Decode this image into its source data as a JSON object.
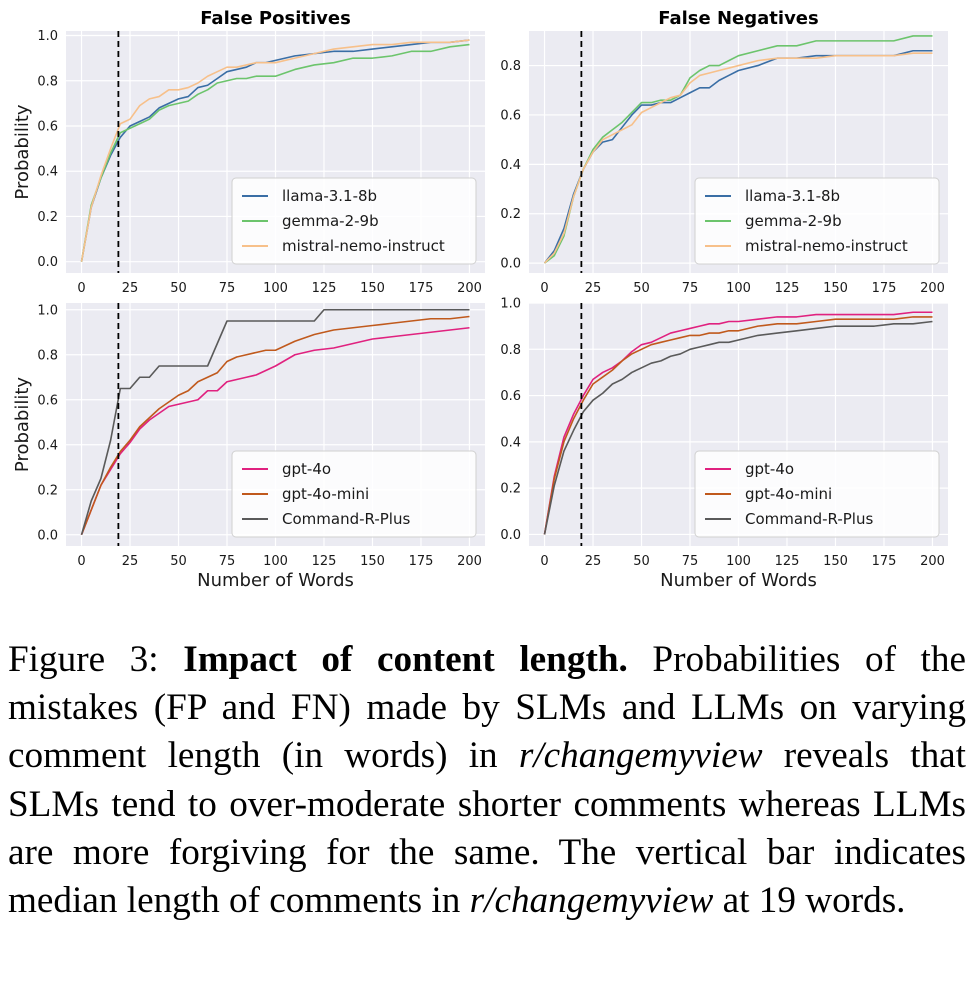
{
  "chart_data": [
    {
      "type": "line",
      "title": "False Positives",
      "xlabel": "",
      "ylabel": "Probability",
      "xlim": [
        -8,
        208
      ],
      "ylim": [
        -0.05,
        1.02
      ],
      "xticks": [
        0,
        25,
        50,
        75,
        100,
        125,
        150,
        175,
        200
      ],
      "yticks": [
        0.0,
        0.2,
        0.4,
        0.6,
        0.8,
        1.0
      ],
      "grid": true,
      "legend": "lower-right",
      "vline": 19,
      "series": [
        {
          "name": "llama-3.1-8b",
          "color": "#3a6ea5",
          "x": [
            0,
            5,
            10,
            15,
            20,
            25,
            30,
            35,
            40,
            45,
            50,
            55,
            60,
            65,
            70,
            75,
            80,
            85,
            90,
            95,
            100,
            110,
            120,
            130,
            140,
            150,
            160,
            170,
            180,
            190,
            200
          ],
          "y": [
            0,
            0.24,
            0.37,
            0.47,
            0.55,
            0.6,
            0.62,
            0.64,
            0.68,
            0.7,
            0.72,
            0.73,
            0.77,
            0.78,
            0.81,
            0.84,
            0.85,
            0.86,
            0.88,
            0.88,
            0.89,
            0.91,
            0.92,
            0.93,
            0.93,
            0.94,
            0.95,
            0.96,
            0.97,
            0.97,
            0.98
          ]
        },
        {
          "name": "gemma-2-9b",
          "color": "#6cc46c",
          "x": [
            0,
            5,
            10,
            15,
            20,
            25,
            30,
            35,
            40,
            45,
            50,
            55,
            60,
            65,
            70,
            75,
            80,
            85,
            90,
            95,
            100,
            110,
            120,
            130,
            140,
            150,
            160,
            170,
            180,
            190,
            200
          ],
          "y": [
            0,
            0.25,
            0.37,
            0.48,
            0.57,
            0.59,
            0.61,
            0.63,
            0.67,
            0.69,
            0.7,
            0.71,
            0.74,
            0.76,
            0.79,
            0.8,
            0.81,
            0.81,
            0.82,
            0.82,
            0.82,
            0.85,
            0.87,
            0.88,
            0.9,
            0.9,
            0.91,
            0.93,
            0.93,
            0.95,
            0.96
          ]
        },
        {
          "name": "mistral-nemo-instruct",
          "color": "#f7c08a",
          "x": [
            0,
            5,
            10,
            15,
            20,
            25,
            30,
            35,
            40,
            45,
            50,
            55,
            60,
            65,
            70,
            75,
            80,
            85,
            90,
            95,
            100,
            110,
            120,
            130,
            140,
            150,
            160,
            170,
            180,
            190,
            200
          ],
          "y": [
            0,
            0.24,
            0.38,
            0.5,
            0.61,
            0.63,
            0.69,
            0.72,
            0.73,
            0.76,
            0.76,
            0.77,
            0.79,
            0.82,
            0.84,
            0.86,
            0.86,
            0.87,
            0.88,
            0.88,
            0.88,
            0.9,
            0.92,
            0.94,
            0.95,
            0.96,
            0.96,
            0.97,
            0.97,
            0.97,
            0.98
          ]
        }
      ]
    },
    {
      "type": "line",
      "title": "False Negatives",
      "xlabel": "",
      "ylabel": "",
      "xlim": [
        -8,
        208
      ],
      "ylim": [
        -0.04,
        0.94
      ],
      "xticks": [
        0,
        25,
        50,
        75,
        100,
        125,
        150,
        175,
        200
      ],
      "yticks": [
        0.0,
        0.2,
        0.4,
        0.6,
        0.8
      ],
      "grid": true,
      "legend": "lower-right",
      "vline": 19,
      "series": [
        {
          "name": "llama-3.1-8b",
          "color": "#3a6ea5",
          "x": [
            0,
            5,
            10,
            15,
            20,
            25,
            30,
            35,
            40,
            45,
            50,
            55,
            60,
            65,
            70,
            75,
            80,
            85,
            90,
            95,
            100,
            110,
            120,
            130,
            140,
            150,
            160,
            170,
            180,
            190,
            200
          ],
          "y": [
            0,
            0.05,
            0.14,
            0.28,
            0.38,
            0.45,
            0.49,
            0.5,
            0.55,
            0.6,
            0.64,
            0.64,
            0.65,
            0.65,
            0.67,
            0.69,
            0.71,
            0.71,
            0.74,
            0.76,
            0.78,
            0.8,
            0.83,
            0.83,
            0.84,
            0.84,
            0.84,
            0.84,
            0.84,
            0.86,
            0.86
          ]
        },
        {
          "name": "gemma-2-9b",
          "color": "#6cc46c",
          "x": [
            0,
            5,
            10,
            15,
            20,
            25,
            30,
            35,
            40,
            45,
            50,
            55,
            60,
            65,
            70,
            75,
            80,
            85,
            90,
            95,
            100,
            110,
            120,
            130,
            140,
            150,
            160,
            170,
            180,
            190,
            200
          ],
          "y": [
            0,
            0.03,
            0.11,
            0.27,
            0.38,
            0.46,
            0.51,
            0.54,
            0.57,
            0.61,
            0.65,
            0.65,
            0.66,
            0.66,
            0.68,
            0.75,
            0.78,
            0.8,
            0.8,
            0.82,
            0.84,
            0.86,
            0.88,
            0.88,
            0.9,
            0.9,
            0.9,
            0.9,
            0.9,
            0.92,
            0.92
          ]
        },
        {
          "name": "mistral-nemo-instruct",
          "color": "#f7c08a",
          "x": [
            0,
            5,
            10,
            15,
            20,
            25,
            30,
            35,
            40,
            45,
            50,
            55,
            60,
            65,
            70,
            75,
            80,
            85,
            90,
            95,
            100,
            110,
            120,
            130,
            140,
            150,
            160,
            170,
            180,
            190,
            200
          ],
          "y": [
            0,
            0.04,
            0.12,
            0.27,
            0.38,
            0.45,
            0.5,
            0.52,
            0.54,
            0.56,
            0.61,
            0.63,
            0.65,
            0.67,
            0.68,
            0.73,
            0.76,
            0.77,
            0.78,
            0.79,
            0.8,
            0.82,
            0.83,
            0.83,
            0.83,
            0.84,
            0.84,
            0.84,
            0.84,
            0.85,
            0.85
          ]
        }
      ]
    },
    {
      "type": "line",
      "title": "",
      "xlabel": "Number of Words",
      "ylabel": "Probability",
      "xlim": [
        -8,
        208
      ],
      "ylim": [
        -0.05,
        1.03
      ],
      "xticks": [
        0,
        25,
        50,
        75,
        100,
        125,
        150,
        175,
        200
      ],
      "yticks": [
        0.0,
        0.2,
        0.4,
        0.6,
        0.8,
        1.0
      ],
      "grid": true,
      "legend": "lower-right",
      "vline": 19,
      "series": [
        {
          "name": "gpt-4o",
          "color": "#e0217f",
          "x": [
            0,
            5,
            10,
            15,
            20,
            25,
            30,
            35,
            40,
            45,
            50,
            55,
            60,
            65,
            70,
            75,
            80,
            85,
            90,
            95,
            100,
            110,
            120,
            130,
            140,
            150,
            160,
            170,
            180,
            190,
            200
          ],
          "y": [
            0,
            0.11,
            0.22,
            0.29,
            0.36,
            0.41,
            0.47,
            0.51,
            0.54,
            0.57,
            0.58,
            0.59,
            0.6,
            0.64,
            0.64,
            0.68,
            0.69,
            0.7,
            0.71,
            0.73,
            0.75,
            0.8,
            0.82,
            0.83,
            0.85,
            0.87,
            0.88,
            0.89,
            0.9,
            0.91,
            0.92
          ]
        },
        {
          "name": "gpt-4o-mini",
          "color": "#c0591c",
          "x": [
            0,
            5,
            10,
            15,
            20,
            25,
            30,
            35,
            40,
            45,
            50,
            55,
            60,
            65,
            70,
            75,
            80,
            85,
            90,
            95,
            100,
            110,
            120,
            130,
            140,
            150,
            160,
            170,
            180,
            190,
            200
          ],
          "y": [
            0,
            0.11,
            0.22,
            0.3,
            0.37,
            0.42,
            0.48,
            0.52,
            0.56,
            0.59,
            0.62,
            0.64,
            0.68,
            0.7,
            0.72,
            0.77,
            0.79,
            0.8,
            0.81,
            0.82,
            0.82,
            0.86,
            0.89,
            0.91,
            0.92,
            0.93,
            0.94,
            0.95,
            0.96,
            0.96,
            0.97
          ]
        },
        {
          "name": "Command-R-Plus",
          "color": "#5a5a5a",
          "x": [
            0,
            5,
            10,
            15,
            20,
            25,
            30,
            35,
            40,
            45,
            50,
            55,
            60,
            65,
            70,
            75,
            80,
            85,
            90,
            95,
            100,
            105,
            110,
            115,
            120,
            125,
            130,
            140,
            150,
            160,
            170,
            180,
            190,
            200
          ],
          "y": [
            0,
            0.15,
            0.25,
            0.42,
            0.65,
            0.65,
            0.7,
            0.7,
            0.75,
            0.75,
            0.75,
            0.75,
            0.75,
            0.75,
            0.85,
            0.95,
            0.95,
            0.95,
            0.95,
            0.95,
            0.95,
            0.95,
            0.95,
            0.95,
            0.95,
            1.0,
            1.0,
            1.0,
            1.0,
            1.0,
            1.0,
            1.0,
            1.0,
            1.0
          ]
        }
      ]
    },
    {
      "type": "line",
      "title": "",
      "xlabel": "Number of Words",
      "ylabel": "",
      "xlim": [
        -8,
        208
      ],
      "ylim": [
        -0.05,
        1.0
      ],
      "xticks": [
        0,
        25,
        50,
        75,
        100,
        125,
        150,
        175,
        200
      ],
      "yticks": [
        0.0,
        0.2,
        0.4,
        0.6,
        0.8,
        1.0
      ],
      "grid": true,
      "legend": "lower-right",
      "vline": 19,
      "series": [
        {
          "name": "gpt-4o",
          "color": "#e0217f",
          "x": [
            0,
            5,
            10,
            15,
            20,
            25,
            30,
            35,
            40,
            45,
            50,
            55,
            60,
            65,
            70,
            75,
            80,
            85,
            90,
            95,
            100,
            110,
            120,
            130,
            140,
            150,
            160,
            170,
            180,
            190,
            200
          ],
          "y": [
            0,
            0.25,
            0.42,
            0.52,
            0.6,
            0.67,
            0.7,
            0.72,
            0.75,
            0.79,
            0.82,
            0.83,
            0.85,
            0.87,
            0.88,
            0.89,
            0.9,
            0.91,
            0.91,
            0.92,
            0.92,
            0.93,
            0.94,
            0.94,
            0.95,
            0.95,
            0.95,
            0.95,
            0.95,
            0.96,
            0.96
          ]
        },
        {
          "name": "gpt-4o-mini",
          "color": "#c0591c",
          "x": [
            0,
            5,
            10,
            15,
            20,
            25,
            30,
            35,
            40,
            45,
            50,
            55,
            60,
            65,
            70,
            75,
            80,
            85,
            90,
            95,
            100,
            110,
            120,
            130,
            140,
            150,
            160,
            170,
            180,
            190,
            200
          ],
          "y": [
            0,
            0.24,
            0.4,
            0.5,
            0.58,
            0.65,
            0.68,
            0.71,
            0.75,
            0.78,
            0.8,
            0.82,
            0.83,
            0.84,
            0.85,
            0.86,
            0.86,
            0.87,
            0.87,
            0.88,
            0.88,
            0.9,
            0.91,
            0.91,
            0.92,
            0.93,
            0.93,
            0.93,
            0.93,
            0.94,
            0.94
          ]
        },
        {
          "name": "Command-R-Plus",
          "color": "#5a5a5a",
          "x": [
            0,
            5,
            10,
            15,
            20,
            25,
            30,
            35,
            40,
            45,
            50,
            55,
            60,
            65,
            70,
            75,
            80,
            85,
            90,
            95,
            100,
            110,
            120,
            130,
            140,
            150,
            160,
            170,
            180,
            190,
            200
          ],
          "y": [
            0,
            0.21,
            0.36,
            0.45,
            0.53,
            0.58,
            0.61,
            0.65,
            0.67,
            0.7,
            0.72,
            0.74,
            0.75,
            0.77,
            0.78,
            0.8,
            0.81,
            0.82,
            0.83,
            0.83,
            0.84,
            0.86,
            0.87,
            0.88,
            0.89,
            0.9,
            0.9,
            0.9,
            0.91,
            0.91,
            0.92
          ]
        }
      ]
    }
  ],
  "caption": {
    "label": "Figure 3:",
    "bold": "Impact of content length.",
    "text1": "Probabilities of the mistakes (FP and FN) made by SLMs and LLMs on varying comment length (in words) in",
    "italic1": "r/changemyview",
    "text2": "reveals that SLMs tend to over-moderate shorter comments whereas LLMs are more forgiving for the same. The vertical bar indicates median length of comments in",
    "italic2": "r/changemyview",
    "text3": "at 19 words."
  }
}
